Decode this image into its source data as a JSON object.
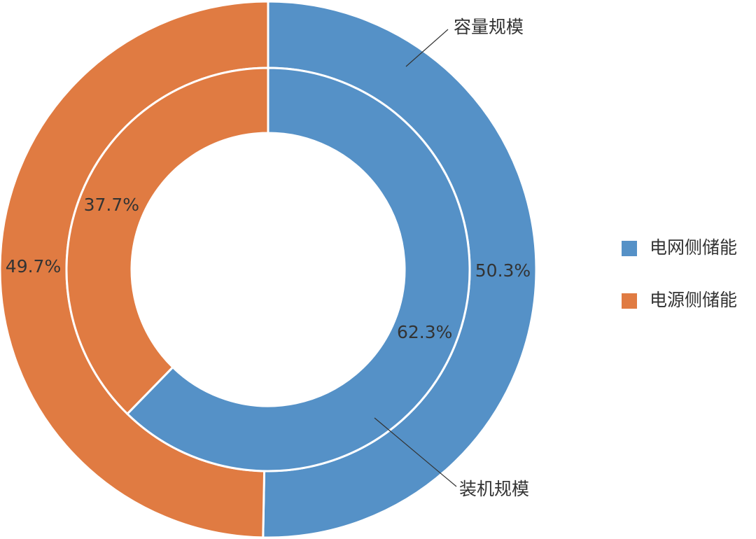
{
  "chart_data": {
    "type": "pie",
    "categories": [
      "电网侧储能",
      "电源侧储能"
    ],
    "colors": [
      "#5591c7",
      "#e07b42"
    ],
    "rings": [
      {
        "name": "容量规模",
        "values": [
          50.3,
          49.7
        ],
        "value_labels": [
          "50.3%",
          "49.7%"
        ]
      },
      {
        "name": "装机规模",
        "values": [
          62.3,
          37.7
        ],
        "value_labels": [
          "62.3%",
          "37.7%"
        ]
      }
    ],
    "legend": "right"
  }
}
